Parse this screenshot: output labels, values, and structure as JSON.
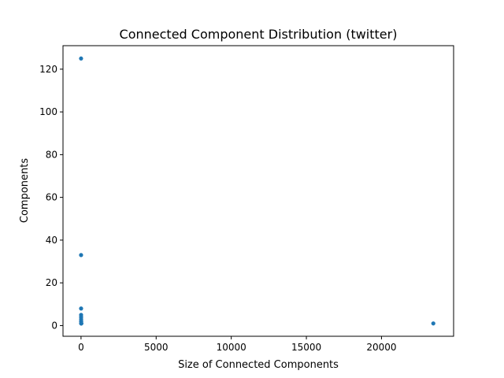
{
  "chart_data": {
    "type": "scatter",
    "title": "Connected Component Distribution (twitter)",
    "xlabel": "Size of Connected Components",
    "ylabel": "Components",
    "xlim": [
      -1200,
      24800
    ],
    "ylim": [
      -5,
      131
    ],
    "xticks": [
      0,
      5000,
      10000,
      15000,
      20000
    ],
    "yticks": [
      0,
      20,
      40,
      60,
      80,
      100,
      120
    ],
    "grid": false,
    "series": [
      {
        "name": "components",
        "color": "#1f77b4",
        "points": [
          {
            "x": 2,
            "y": 125
          },
          {
            "x": 3,
            "y": 33
          },
          {
            "x": 4,
            "y": 8
          },
          {
            "x": 5,
            "y": 5
          },
          {
            "x": 6,
            "y": 4
          },
          {
            "x": 7,
            "y": 3
          },
          {
            "x": 8,
            "y": 2
          },
          {
            "x": 9,
            "y": 2
          },
          {
            "x": 10,
            "y": 1
          },
          {
            "x": 12,
            "y": 1
          },
          {
            "x": 15,
            "y": 1
          },
          {
            "x": 20,
            "y": 1
          },
          {
            "x": 23450,
            "y": 1
          }
        ]
      }
    ]
  }
}
